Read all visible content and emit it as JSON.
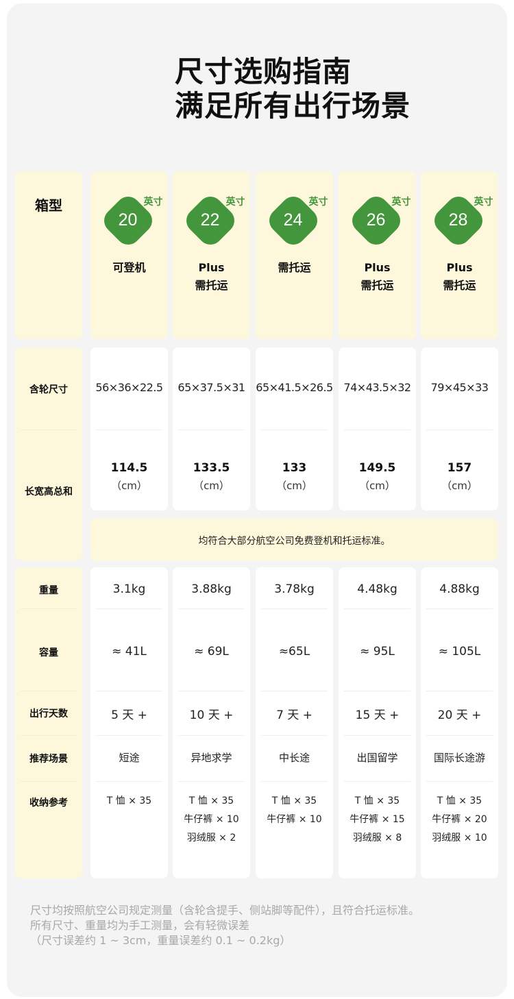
{
  "title": {
    "line1": "尺寸选购指南",
    "line2": "满足所有出行场景"
  },
  "accent_color": "#43963b",
  "row_labels": {
    "type": "箱型",
    "dimensions": "含轮尺寸",
    "sum": "长宽高总和",
    "weight": "重量",
    "capacity": "容量",
    "days": "出行天数",
    "scenario": "推荐场景",
    "packing": "收纳参考"
  },
  "unit_inch": "英寸",
  "models": [
    {
      "size": "20",
      "line1": "可登机",
      "line2": "",
      "dimensions": "56×36×22.5",
      "sum": "114.5",
      "sum_unit": "（cm）",
      "weight": "3.1kg",
      "capacity": "≈ 41L",
      "days": "5 天 +",
      "scenario": "短途",
      "packing": [
        "T 恤 × 35"
      ]
    },
    {
      "size": "22",
      "line1": "Plus",
      "line2": "需托运",
      "dimensions": "65×37.5×31",
      "sum": "133.5",
      "sum_unit": "（cm）",
      "weight": "3.88kg",
      "capacity": "≈ 69L",
      "days": "10 天 +",
      "scenario": "异地求学",
      "packing": [
        "T 恤 × 35",
        "牛仔裤 × 10",
        "羽绒服 × 2"
      ]
    },
    {
      "size": "24",
      "line1": "需托运",
      "line2": "",
      "dimensions": "65×41.5×26.5",
      "sum": "133",
      "sum_unit": "（cm）",
      "weight": "3.78kg",
      "capacity": "≈65L",
      "days": "7 天 +",
      "scenario": "中长途",
      "packing": [
        "T 恤 × 35",
        "牛仔裤 × 10"
      ]
    },
    {
      "size": "26",
      "line1": "Plus",
      "line2": "需托运",
      "dimensions": "74×43.5×32",
      "sum": "149.5",
      "sum_unit": "（cm）",
      "weight": "4.48kg",
      "capacity": "≈ 95L",
      "days": "15 天 +",
      "scenario": "出国留学",
      "packing": [
        "T 恤 × 35",
        "牛仔裤 × 15",
        "羽绒服 × 8"
      ]
    },
    {
      "size": "28",
      "line1": "Plus",
      "line2": "需托运",
      "dimensions": "79×45×33",
      "sum": "157",
      "sum_unit": "（cm）",
      "weight": "4.88kg",
      "capacity": "≈ 105L",
      "days": "20 天 +",
      "scenario": "国际长途游",
      "packing": [
        "T 恤 × 35",
        "牛仔裤 × 20",
        "羽绒服 × 10"
      ]
    }
  ],
  "note": "均符合大部分航空公司免费登机和托运标准。",
  "footer": [
    "尺寸均按照航空公司规定测量（含轮含提手、侧站脚等配件），且符合托运标准。",
    "所有尺寸、重量均为手工测量，会有轻微误差",
    "（尺寸误差约 1 ~ 3cm，重量误差约 0.1 ~ 0.2kg）"
  ]
}
